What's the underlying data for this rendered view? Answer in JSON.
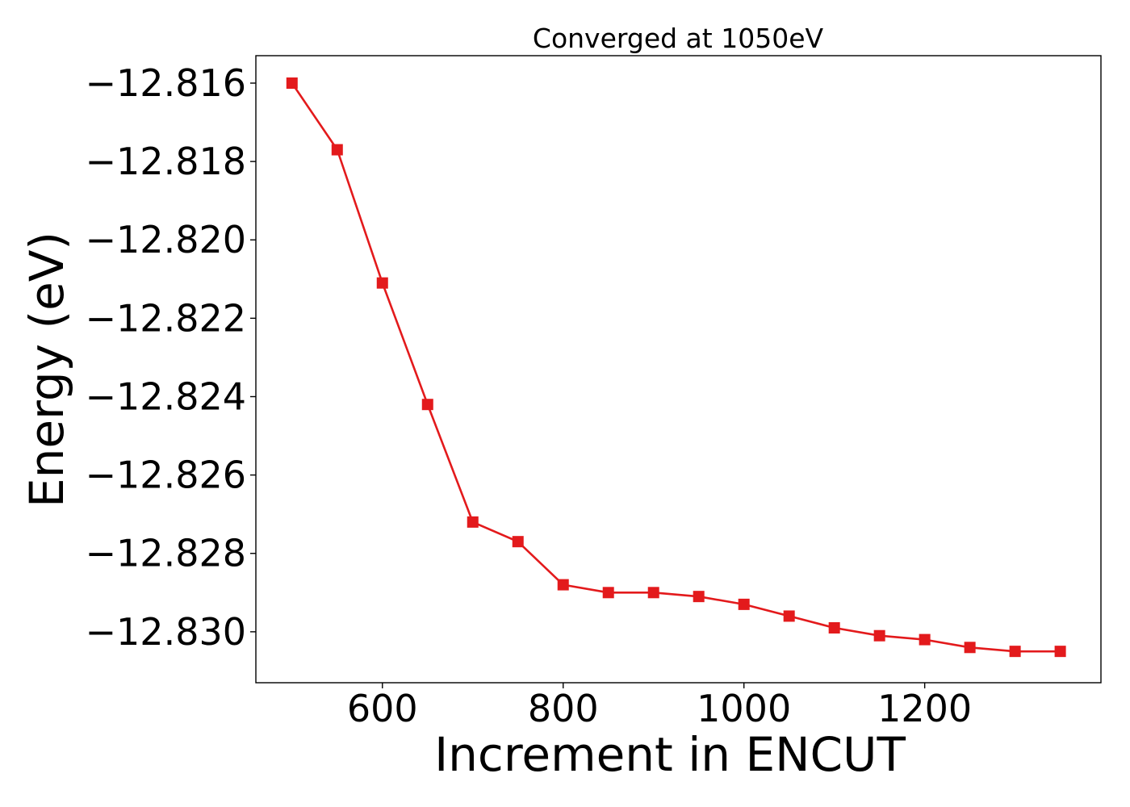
{
  "chart_data": {
    "type": "line",
    "title": "Converged at 1050eV",
    "xlabel": "Increment in ENCUT",
    "ylabel": "Energy (eV)",
    "xlim": [
      460,
      1395
    ],
    "ylim": [
      -12.8313,
      -12.8153
    ],
    "x_ticks": [
      600,
      800,
      1000,
      1200
    ],
    "x_tick_labels": [
      "600",
      "800",
      "1000",
      "1200"
    ],
    "y_ticks": [
      -12.816,
      -12.818,
      -12.82,
      -12.822,
      -12.824,
      -12.826,
      -12.828,
      -12.83
    ],
    "y_tick_labels": [
      "−12.816",
      "−12.818",
      "−12.820",
      "−12.822",
      "−12.824",
      "−12.826",
      "−12.828",
      "−12.830"
    ],
    "grid": false,
    "series": [
      {
        "color": "#e31a1c",
        "marker": "square",
        "x": [
          500,
          550,
          600,
          650,
          700,
          750,
          800,
          850,
          900,
          950,
          1000,
          1050,
          1100,
          1150,
          1200,
          1250,
          1300,
          1350
        ],
        "y": [
          -12.816,
          -12.8177,
          -12.8211,
          -12.8242,
          -12.8272,
          -12.8277,
          -12.8288,
          -12.829,
          -12.829,
          -12.8291,
          -12.8293,
          -12.8296,
          -12.8299,
          -12.8301,
          -12.8302,
          -12.8304,
          -12.8305,
          -12.8305
        ]
      }
    ]
  }
}
